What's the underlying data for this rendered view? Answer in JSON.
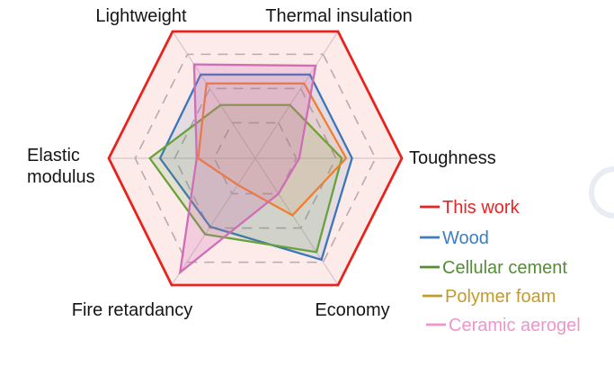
{
  "figure": {
    "background": "#ffffff",
    "watermark": {
      "description": "faint circular ring partially cut off at right edge",
      "color": "#e9edf3"
    }
  },
  "chart_data": {
    "type": "radar",
    "title": "",
    "value_range": [
      0,
      1
    ],
    "grid": {
      "style": "dashed",
      "levels": [
        0.28,
        0.55,
        0.82
      ],
      "ring_color": "#b7b7bd",
      "spoke_color": "#d7d7dc",
      "grid_on": true
    },
    "axes": [
      {
        "label": "Thermal insulation",
        "angle_deg": 60
      },
      {
        "label": "Toughness",
        "angle_deg": 0
      },
      {
        "label": "Economy",
        "angle_deg": -60
      },
      {
        "label": "Fire retardancy",
        "angle_deg": -120
      },
      {
        "label": "Elastic modulus",
        "angle_deg": 180
      },
      {
        "label": "Lightweight",
        "angle_deg": 120
      }
    ],
    "legend": {
      "position": "right"
    },
    "series": [
      {
        "name": "This work",
        "line_color": "#e8231e",
        "fill_color": "rgba(231,32,24,0.09)",
        "legend_color": "#ee2224",
        "line_width": 2.8,
        "values": [
          1.0,
          1.0,
          1.0,
          1.0,
          1.0,
          1.0
        ]
      },
      {
        "name": "Wood",
        "line_color": "#3b76b8",
        "fill_color": "rgba(59,118,184,0.13)",
        "legend_color": "#3e7dbd",
        "line_width": 2.3,
        "values": [
          0.66,
          0.66,
          0.8,
          0.54,
          0.65,
          0.66
        ]
      },
      {
        "name": "Cellular cement",
        "line_color": "#68a23c",
        "fill_color": "rgba(104,162,60,0.15)",
        "legend_color": "#548d35",
        "line_width": 2.3,
        "values": [
          0.42,
          0.59,
          0.74,
          0.6,
          0.72,
          0.42
        ]
      },
      {
        "name": "Polymer foam",
        "line_color": "#ef7f2e",
        "fill_color": "rgba(239,127,46,0.11)",
        "legend_color": "#c49a2b",
        "line_width": 2.3,
        "values": [
          0.59,
          0.62,
          0.45,
          0.21,
          0.39,
          0.59
        ]
      },
      {
        "name": "Ceramic aerogel",
        "line_color": "#cf6db6",
        "fill_color": "rgba(208,108,180,0.24)",
        "legend_color": "#ee95cb",
        "line_width": 2.3,
        "values": [
          0.73,
          0.3,
          0.28,
          0.9,
          0.4,
          0.74
        ]
      }
    ]
  }
}
